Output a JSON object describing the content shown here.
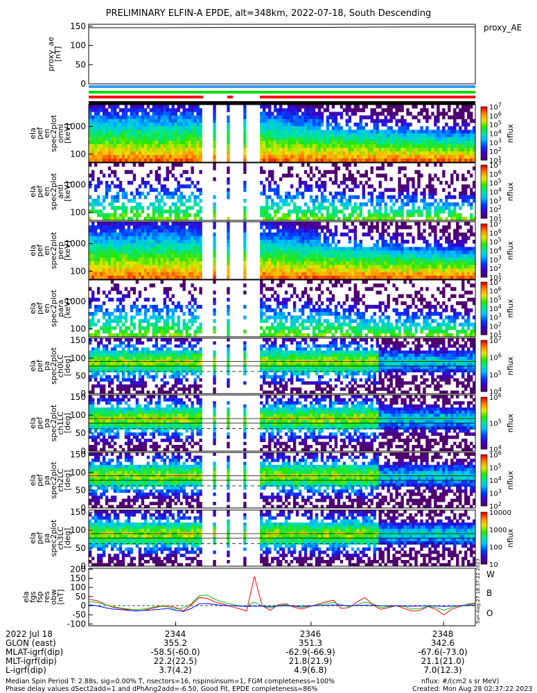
{
  "title": "PRELIMINARY ELFIN-A EPDE, alt=348km, 2022-07-18, South Descending",
  "chart_data": [
    {
      "type": "line",
      "panel": "proxy_ae",
      "ylabel": [
        "proxy_ae",
        "[nT]"
      ],
      "yticks": [
        "150",
        "100",
        "50",
        "0"
      ],
      "ylim": [
        0,
        155
      ],
      "legend": "proxy_AE",
      "x": [
        0,
        0.2,
        0.4,
        0.6,
        0.8,
        1.0
      ],
      "values": [
        146,
        146,
        147,
        147,
        148,
        148
      ]
    },
    {
      "type": "heatmap",
      "panel": "en_spectra_omni",
      "ylabel": [
        "ela",
        "pef",
        "en",
        "spec2plot",
        "omni",
        "[keV]"
      ],
      "yticks": [
        "1000",
        "100"
      ],
      "scale": "log",
      "colorbar": {
        "label": "nflux",
        "ticks": [
          "10^7",
          "10^6",
          "10^5",
          "10^4",
          "10^3",
          "10^2",
          "10^1"
        ]
      }
    },
    {
      "type": "heatmap",
      "panel": "en_spectra_anti",
      "ylabel": [
        "ela",
        "pef",
        "en",
        "spec2plot",
        "anti",
        "[keV]"
      ],
      "yticks": [
        "1000",
        "100"
      ],
      "scale": "log",
      "colorbar": {
        "label": "nflux",
        "ticks": [
          "10^7",
          "10^6",
          "10^5",
          "10^4",
          "10^3",
          "10^2",
          "10^1"
        ]
      }
    },
    {
      "type": "heatmap",
      "panel": "en_spectra_perp",
      "ylabel": [
        "ela",
        "pef",
        "en",
        "spec2plot",
        "perp",
        "[keV]"
      ],
      "yticks": [
        "1000",
        "100"
      ],
      "scale": "log",
      "colorbar": {
        "label": "nflux",
        "ticks": [
          "10^7",
          "10^6",
          "10^5",
          "10^4",
          "10^3",
          "10^2",
          "10^1"
        ]
      }
    },
    {
      "type": "heatmap",
      "panel": "en_spectra_para",
      "ylabel": [
        "ela",
        "pef",
        "en",
        "spec2plot",
        "para",
        "[keV]"
      ],
      "yticks": [
        "1000",
        "100"
      ],
      "scale": "log",
      "colorbar": {
        "label": "nflux",
        "ticks": [
          "10^7",
          "10^6",
          "10^5",
          "10^4",
          "10^3",
          "10^2",
          "10^1"
        ]
      }
    },
    {
      "type": "heatmap",
      "panel": "pa_ch0LC",
      "ylabel": [
        "ela",
        "pef",
        "pa",
        "spec2plot",
        "ch0LC",
        "[deg]"
      ],
      "yticks": [
        "150",
        "100",
        "50",
        "0"
      ],
      "colorbar": {
        "label": "nflux",
        "ticks": [
          "10^7",
          "10^6",
          "10^5",
          "10^4"
        ]
      }
    },
    {
      "type": "heatmap",
      "panel": "pa_ch1LC",
      "ylabel": [
        "ela",
        "pef",
        "pa",
        "spec2plot",
        "ch1LC",
        "[deg]"
      ],
      "yticks": [
        "150",
        "100",
        "50",
        "0"
      ],
      "colorbar": {
        "label": "nflux",
        "ticks": [
          "10^6",
          "10^5",
          "10^4"
        ]
      }
    },
    {
      "type": "heatmap",
      "panel": "pa_ch2LC",
      "ylabel": [
        "ela",
        "pef",
        "pa",
        "spec2plot",
        "ch2LC",
        "[deg]"
      ],
      "yticks": [
        "150",
        "100",
        "50",
        "0"
      ],
      "colorbar": {
        "label": "nflux",
        "ticks": [
          "10^6",
          "10^5",
          "10^4",
          "10^3",
          "10^2"
        ]
      }
    },
    {
      "type": "heatmap",
      "panel": "pa_ch3LC",
      "ylabel": [
        "ela",
        "pef",
        "pa",
        "spec2plot",
        "ch3LC",
        "[deg]"
      ],
      "yticks": [
        "150",
        "100",
        "50",
        "0"
      ],
      "colorbar": {
        "label": "nflux",
        "ticks": [
          "10000",
          "1000",
          "100",
          "10"
        ]
      }
    },
    {
      "type": "line",
      "panel": "fgs_res",
      "ylabel": [
        "ela",
        "fgs",
        "fsp",
        "res",
        "obw",
        "[nT]"
      ],
      "yticks": [
        "200",
        "150",
        "100",
        "50",
        "0",
        "-50",
        "-100"
      ],
      "ylim": [
        -110,
        205
      ],
      "legend": [
        "W",
        "B",
        "O"
      ],
      "series": [
        {
          "name": "W",
          "color": "#ff0000",
          "values": [
            35,
            28,
            10,
            -8,
            -15,
            -22,
            -30,
            -25,
            -15,
            -5,
            0,
            -10,
            -28,
            5,
            45,
            40,
            20,
            10,
            -5,
            -15,
            -30,
            160,
            0,
            -25,
            5,
            10,
            -8,
            -18,
            -5,
            8,
            20,
            30,
            -15,
            -10,
            20,
            45,
            5,
            -20,
            -10,
            0,
            -15,
            -30,
            -25,
            -5,
            -20,
            -50,
            -20,
            -5,
            8,
            15
          ]
        },
        {
          "name": "B",
          "color": "#00bb00",
          "values": [
            22,
            18,
            8,
            -5,
            -12,
            -18,
            -22,
            -18,
            -10,
            -2,
            -6,
            -18,
            -12,
            10,
            55,
            58,
            35,
            20,
            8,
            0,
            -5,
            20,
            -3,
            -12,
            0,
            5,
            -2,
            -10,
            -2,
            5,
            10,
            18,
            5,
            -5,
            5,
            20,
            10,
            -10,
            -5,
            0,
            -5,
            -18,
            -15,
            -5,
            -10,
            -25,
            -10,
            0,
            5,
            10
          ]
        },
        {
          "name": "O",
          "color": "#0000ff",
          "values": [
            5,
            0,
            -10,
            -18,
            -22,
            -25,
            -28,
            -26,
            -24,
            -20,
            -15,
            -25,
            -32,
            -15,
            10,
            12,
            6,
            2,
            0,
            -2,
            -5,
            -2,
            -3,
            -4,
            -2,
            0,
            -2,
            -3,
            -1,
            0,
            2,
            4,
            2,
            0,
            1,
            3,
            2,
            0,
            -1,
            0,
            -1,
            -3,
            -2,
            -1,
            -2,
            -4,
            -2,
            0,
            1,
            3
          ]
        }
      ]
    }
  ],
  "time_axis": {
    "ticks": [
      "2344",
      "2346",
      "2348"
    ],
    "rows": [
      {
        "label": "2022 Jul 18",
        "values": [
          "2344",
          "2346",
          "2348"
        ]
      },
      {
        "label": "GLON (east)",
        "values": [
          "355.2",
          "351.3",
          "342.6"
        ]
      },
      {
        "label": "MLAT-igrf(dip)",
        "values": [
          "-58.5(-60.0)",
          "-62.9(-66.9)",
          "-67.6(-73.0)"
        ]
      },
      {
        "label": "MLT-igrf(dip)",
        "values": [
          "22.2(22.5)",
          "21.8(21.9)",
          "21.1(21.0)"
        ]
      },
      {
        "label": "L-igrf(dip)",
        "values": [
          "3.7(4.2)",
          "4.9(6.8)",
          "7.0(12.3)"
        ]
      }
    ]
  },
  "footer": {
    "line1": "Median Spin Period T: 2.88s, sig=0.00% T, nsectors=16, nspinsinsum=1, FGM completeness=100%",
    "line2": "Phase delay values dSect2add=1 and dPhAng2add=-6.50, Good Fit, EPDE completeness=86%",
    "units": "nflux: #/(cm2 s sr MeV)",
    "created": "Created: Mon Aug 28 02:37:22 2023",
    "stamp": "Sun Aug 27 18:37:22 2023"
  },
  "colors": {
    "red": "#ff0000",
    "green": "#00dd00",
    "blue": "#3399ff",
    "black": "#000000"
  }
}
